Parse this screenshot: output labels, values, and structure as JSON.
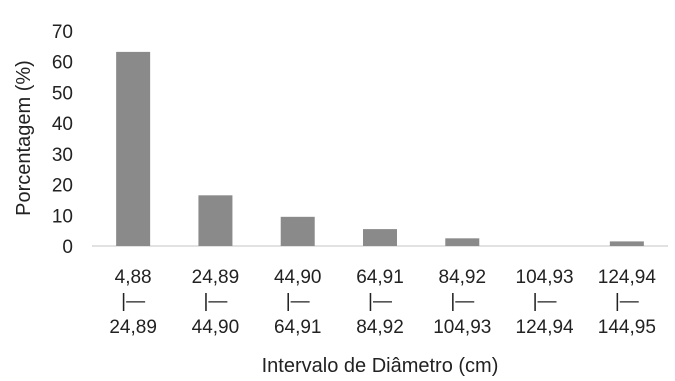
{
  "chart_data": {
    "type": "bar",
    "categories": [
      [
        "4,88",
        "|—",
        "24,89"
      ],
      [
        "24,89",
        "|—",
        "44,90"
      ],
      [
        "44,90",
        "|—",
        "64,91"
      ],
      [
        "64,91",
        "|—",
        "84,92"
      ],
      [
        "84,92",
        "|—",
        "104,93"
      ],
      [
        "104,93",
        "|—",
        "124,94"
      ],
      [
        "124,94",
        "|—",
        "144,95"
      ]
    ],
    "values": [
      63.2,
      16.5,
      9.5,
      5.5,
      2.5,
      0,
      1.5
    ],
    "xlabel": "Intervalo de Diâmetro (cm)",
    "ylabel": "Porcentagem (%)",
    "ylim": [
      0,
      70
    ],
    "yticks": [
      "0",
      "10",
      "20",
      "30",
      "40",
      "50",
      "60",
      "70"
    ],
    "grid": false,
    "bar_color": "#8a8a8a",
    "axis_color": "#d0d0d0"
  }
}
